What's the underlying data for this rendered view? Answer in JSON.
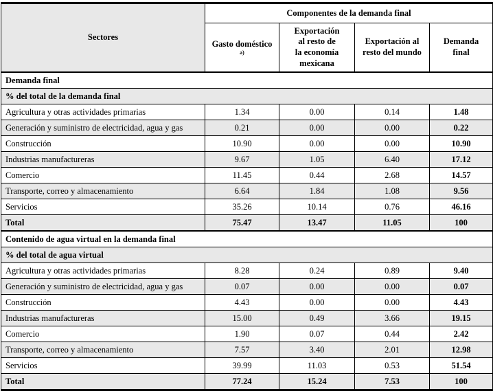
{
  "table": {
    "components_header": "Componentes de la demanda final",
    "sector_header": "Sectores",
    "footnote_marker": "a)",
    "columns": [
      "Gasto doméstico",
      "Exportación\nal resto de\nla economía\nmexicana",
      "Exportación al\nresto del mundo",
      "Demanda\nfinal"
    ],
    "colors": {
      "header_shaded_bg": "#e8e8e8",
      "row_alt_bg": "#e8e8e8",
      "border": "#000000"
    },
    "sections": [
      {
        "title": "Demanda final",
        "subtitle": "% del total de la demanda final",
        "rows": [
          {
            "label": "Agricultura y otras actividades primarias",
            "values": [
              "1.34",
              "0.00",
              "0.14",
              "1.48"
            ]
          },
          {
            "label": "Generación y suministro de electricidad, agua y gas",
            "values": [
              "0.21",
              "0.00",
              "0.00",
              "0.22"
            ]
          },
          {
            "label": "Construcción",
            "values": [
              "10.90",
              "0.00",
              "0.00",
              "10.90"
            ]
          },
          {
            "label": "Industrias manufactureras",
            "values": [
              "9.67",
              "1.05",
              "6.40",
              "17.12"
            ]
          },
          {
            "label": "Comercio",
            "values": [
              "11.45",
              "0.44",
              "2.68",
              "14.57"
            ]
          },
          {
            "label": "Transporte, correo y almacenamiento",
            "values": [
              "6.64",
              "1.84",
              "1.08",
              "9.56"
            ]
          },
          {
            "label": "Servicios",
            "values": [
              "35.26",
              "10.14",
              "0.76",
              "46.16"
            ]
          },
          {
            "label": "Total",
            "values": [
              "75.47",
              "13.47",
              "11.05",
              "100"
            ]
          }
        ]
      },
      {
        "title": "Contenido de agua virtual en la demanda final",
        "subtitle": "% del total de agua virtual",
        "rows": [
          {
            "label": "Agricultura y otras actividades primarias",
            "values": [
              "8.28",
              "0.24",
              "0.89",
              "9.40"
            ]
          },
          {
            "label": "Generación y suministro de electricidad, agua y gas",
            "values": [
              "0.07",
              "0.00",
              "0.00",
              "0.07"
            ]
          },
          {
            "label": "Construcción",
            "values": [
              "4.43",
              "0.00",
              "0.00",
              "4.43"
            ]
          },
          {
            "label": "Industrias manufactureras",
            "values": [
              "15.00",
              "0.49",
              "3.66",
              "19.15"
            ]
          },
          {
            "label": "Comercio",
            "values": [
              "1.90",
              "0.07",
              "0.44",
              "2.42"
            ]
          },
          {
            "label": "Transporte, correo y almacenamiento",
            "values": [
              "7.57",
              "3.40",
              "2.01",
              "12.98"
            ]
          },
          {
            "label": "Servicios",
            "values": [
              "39.99",
              "11.03",
              "0.53",
              "51.54"
            ]
          },
          {
            "label": "Total",
            "values": [
              "77.24",
              "15.24",
              "7.53",
              "100"
            ]
          }
        ]
      }
    ]
  }
}
